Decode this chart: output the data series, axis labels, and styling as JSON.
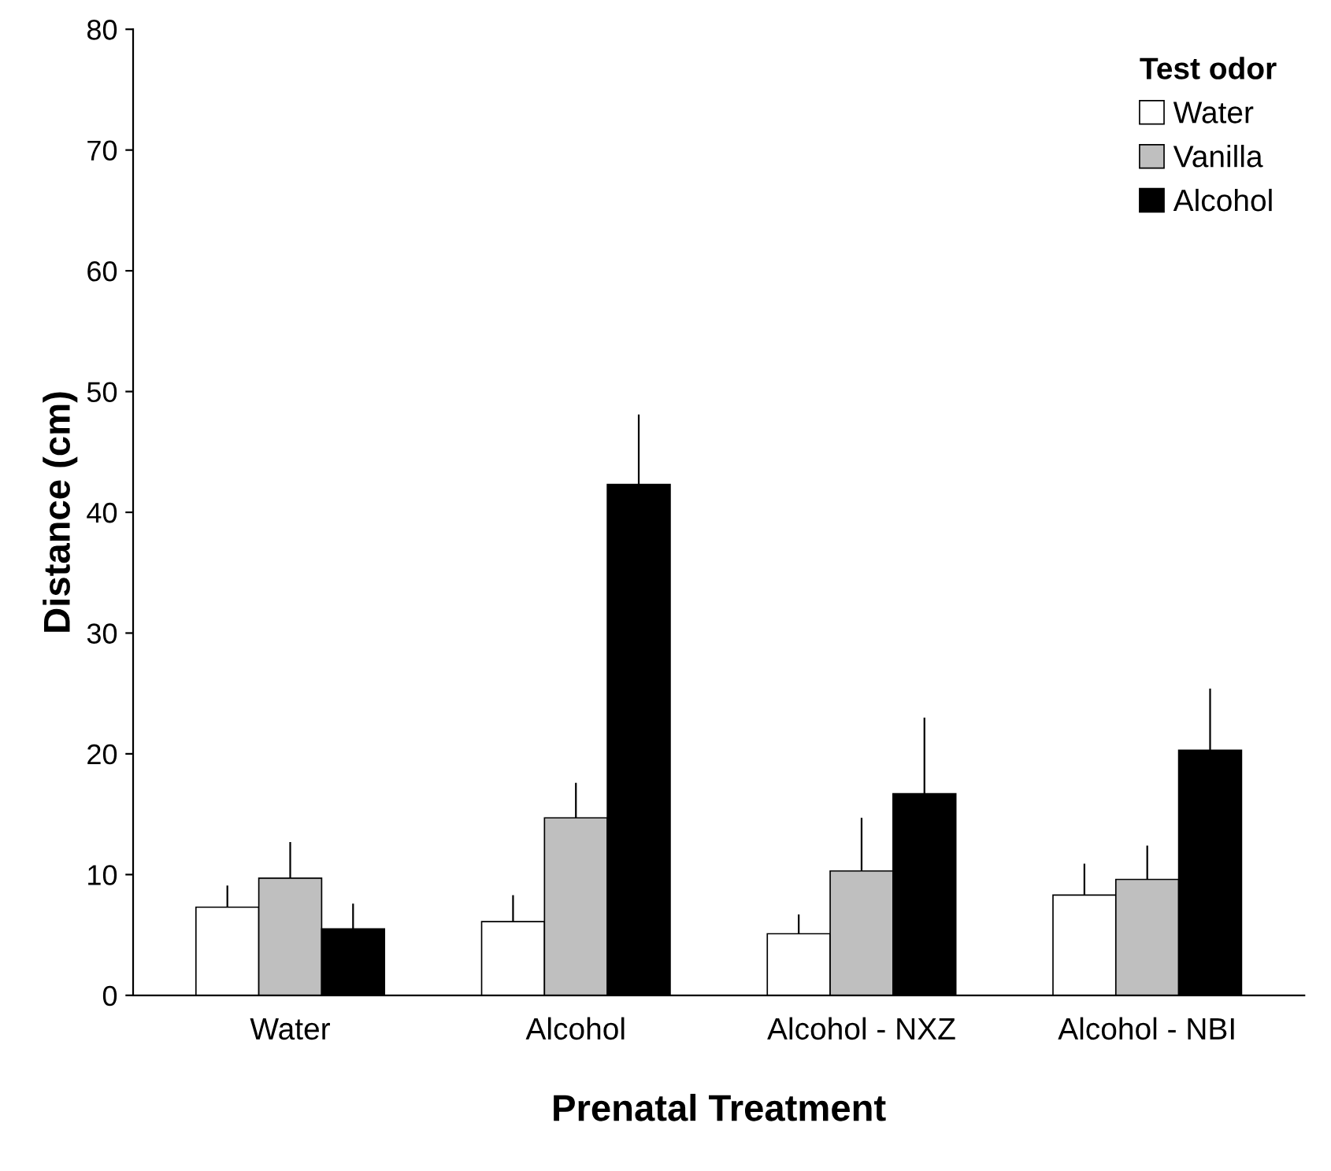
{
  "chart_data": {
    "type": "bar",
    "xlabel": "Prenatal Treatment",
    "ylabel": "Distance (cm)",
    "legend_title": "Test odor",
    "legend": "top right",
    "grid": false,
    "categories": [
      "Water",
      "Alcohol",
      "Alcohol - NXZ",
      "Alcohol - NBI"
    ],
    "ylim": [
      0,
      80
    ],
    "yticks": [
      0,
      10,
      20,
      30,
      40,
      50,
      60,
      70,
      80
    ],
    "series": [
      {
        "name": "Water",
        "color": "#ffffff",
        "values": [
          7.3,
          6.1,
          5.1,
          8.3
        ],
        "errors": [
          [
            7.3,
            9.1
          ],
          [
            6.1,
            8.3
          ],
          [
            5.1,
            6.7
          ],
          [
            8.3,
            10.9
          ]
        ]
      },
      {
        "name": "Vanilla",
        "color": "#bfbfbf",
        "values": [
          9.7,
          14.7,
          10.3,
          9.6
        ],
        "errors": [
          [
            9.7,
            12.7
          ],
          [
            14.7,
            17.6
          ],
          [
            10.3,
            14.7
          ],
          [
            9.6,
            12.4
          ]
        ]
      },
      {
        "name": "Alcohol",
        "color": "#000000",
        "values": [
          5.5,
          42.3,
          16.7,
          20.3
        ],
        "errors": [
          [
            5.5,
            7.6
          ],
          [
            42.3,
            48.1
          ],
          [
            16.7,
            23.0
          ],
          [
            20.3,
            25.4
          ]
        ]
      }
    ]
  }
}
